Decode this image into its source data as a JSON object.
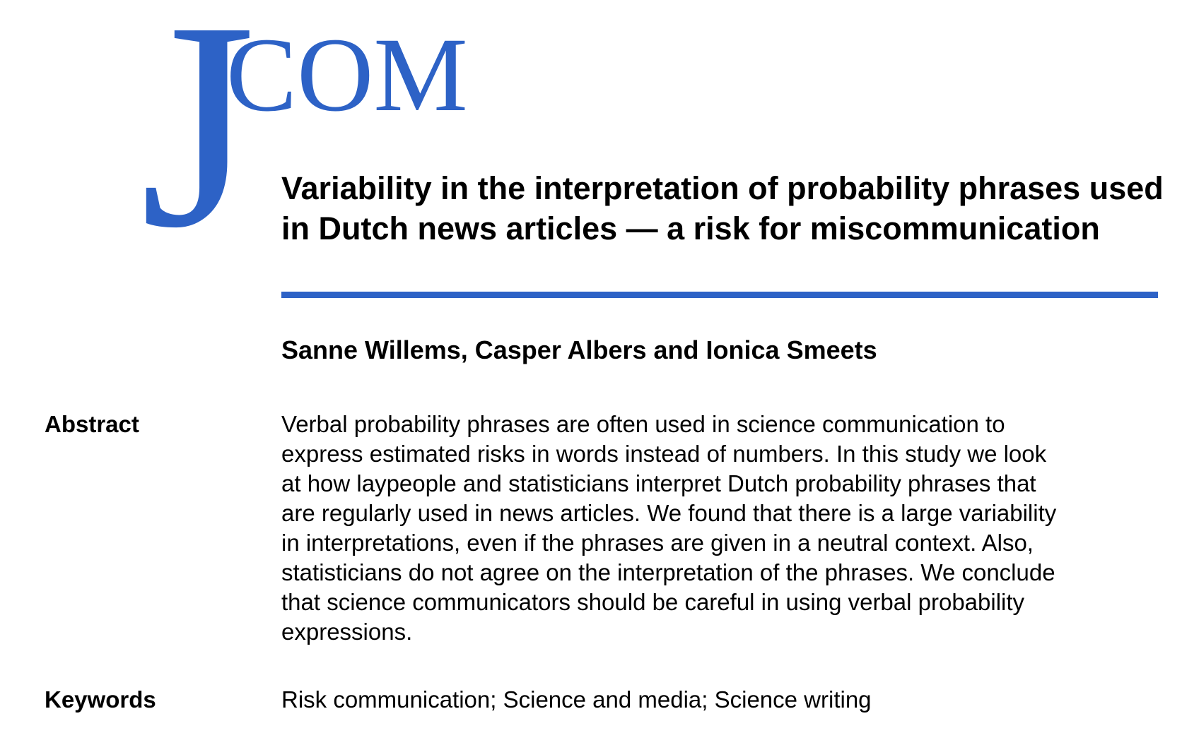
{
  "journal": {
    "logo_text": "JCOM",
    "brand_color": "#2d62c6"
  },
  "article": {
    "title_lines": [
      "Variability in the interpretation of probability phrases used",
      "in Dutch news articles — a risk for miscommunication"
    ],
    "authors": "Sanne Willems, Casper Albers and Ionica Smeets"
  },
  "abstract": {
    "label": "Abstract",
    "lines": [
      "Verbal probability phrases are often used in science communication to",
      "express estimated risks in words instead of numbers. In this study we look",
      "at how laypeople and statisticians interpret Dutch probability phrases that",
      "are regularly used in news articles. We found that there is a large variability",
      "in interpretations, even if the phrases are given in a neutral context. Also,",
      "statisticians do not agree on the interpretation of the phrases. We conclude",
      "that science communicators should be careful in using verbal probability",
      "expressions."
    ]
  },
  "keywords": {
    "label": "Keywords",
    "text": "Risk communication; Science and media; Science writing"
  }
}
